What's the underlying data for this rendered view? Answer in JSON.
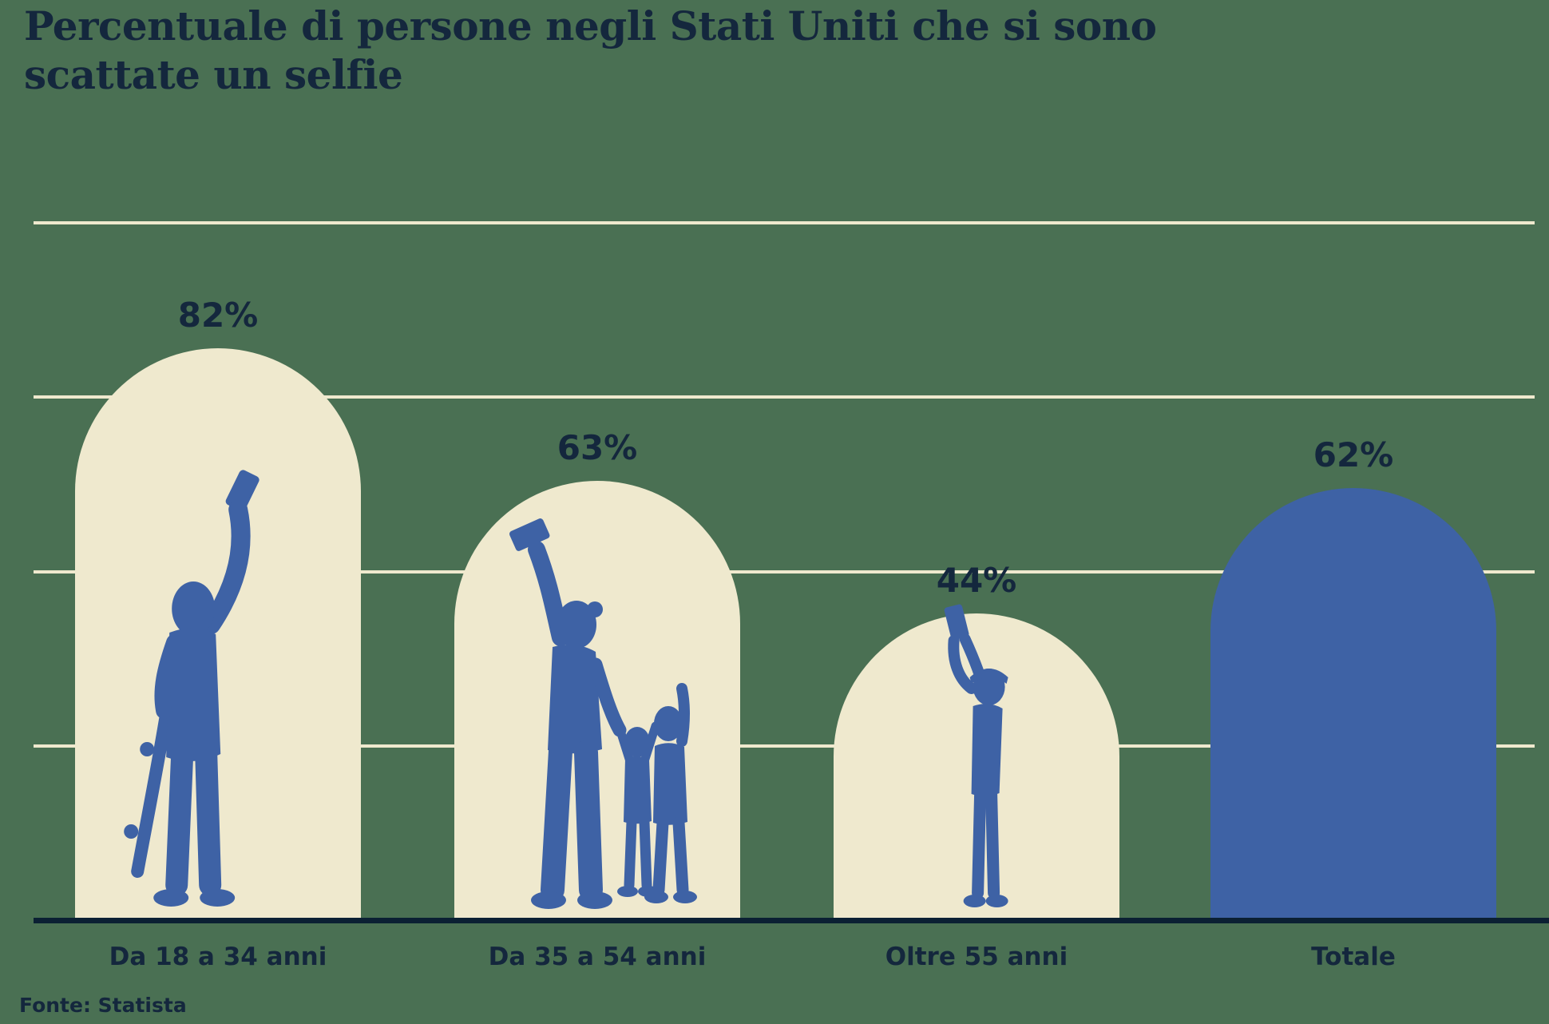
{
  "title": {
    "line1": "Percentuale di persone negli Stati Uniti che si sono",
    "line2": "scattate un selfie"
  },
  "source": "Fonte: Statista",
  "chart_data": {
    "type": "bar",
    "title": "Percentuale di persone negli Stati Uniti che si sono scattate un selfie",
    "categories": [
      "Da 18 a 34 anni",
      "Da 35 a 54 anni",
      "Oltre 55 anni",
      "Totale"
    ],
    "values": [
      82,
      63,
      44,
      62
    ],
    "value_labels": [
      "82%",
      "63%",
      "44%",
      "62%"
    ],
    "ylim": [
      0,
      100
    ],
    "gridlines_pct": [
      25,
      50,
      75,
      100
    ],
    "grid": "on",
    "legend": "none",
    "xlabel": "",
    "ylabel": "",
    "bar_styles": [
      "cream",
      "cream",
      "cream",
      "blue"
    ],
    "bar_icons": [
      "young-adult-selfie-skateboard-silhouette",
      "family-selfie-silhouette",
      "senior-selfie-silhouette",
      ""
    ],
    "source": "Fonte: Statista"
  },
  "colors": {
    "background": "#4A7053",
    "bar_cream": "#EFE9CE",
    "bar_blue": "#3E62A5",
    "silhouette_blue": "#3E62A5",
    "text_navy": "#14273D",
    "axis_navy": "#0B2033",
    "gridline_cream": "#EFE9CE"
  }
}
